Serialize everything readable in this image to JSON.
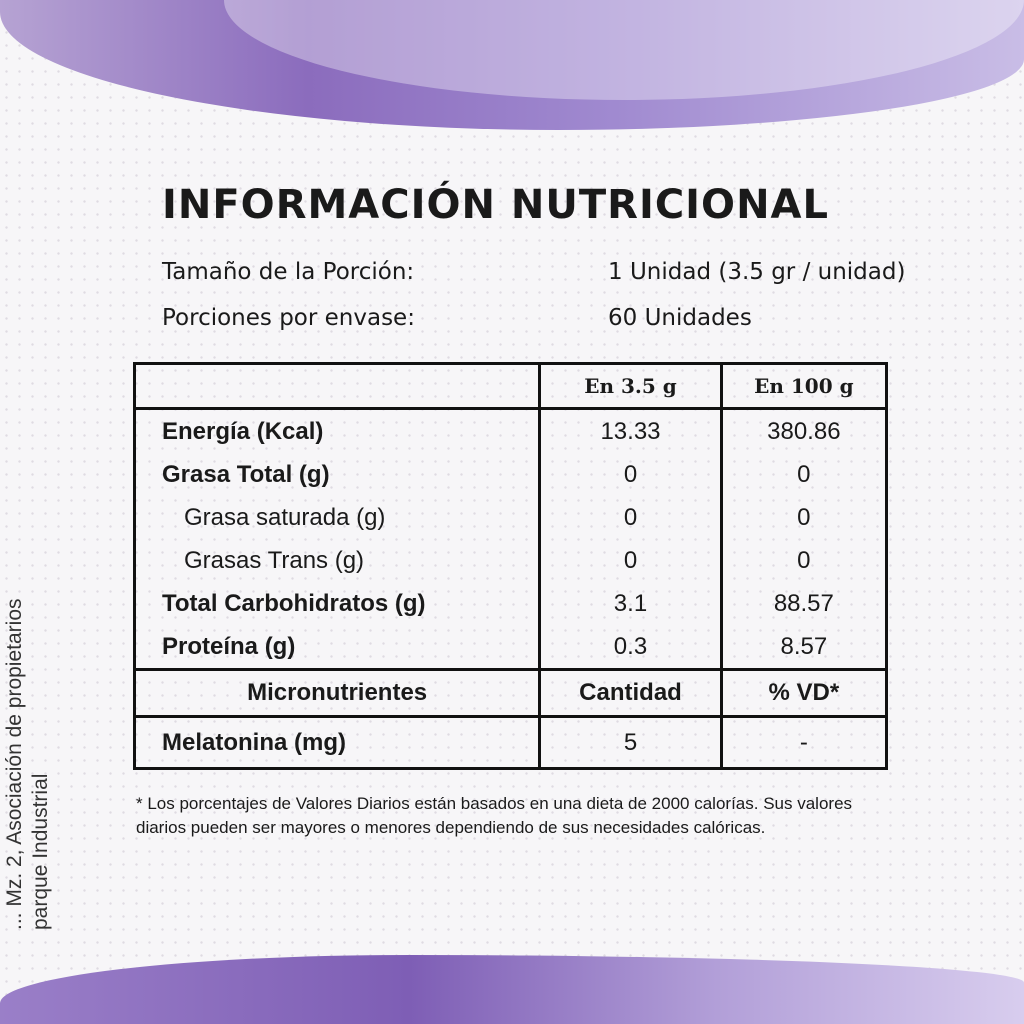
{
  "title": "INFORMACIÓN NUTRICIONAL",
  "serving": {
    "size_label": "Tamaño de la Porción:",
    "size_value": "1 Unidad (3.5 gr / unidad)",
    "per_container_label": "Porciones por envase:",
    "per_container_value": "60 Unidades"
  },
  "table": {
    "headers": [
      "",
      "En 3.5 g",
      "En 100 g"
    ],
    "rows": [
      {
        "name": "Energía (Kcal)",
        "v1": "13.33",
        "v2": "380.86"
      },
      {
        "name": "Grasa Total (g)",
        "v1": "0",
        "v2": "0"
      },
      {
        "name": "Grasa saturada (g)",
        "v1": "0",
        "v2": "0"
      },
      {
        "name": "Grasas Trans (g)",
        "v1": "0",
        "v2": "0"
      },
      {
        "name": "Total Carbohidratos (g)",
        "v1": "3.1",
        "v2": "88.57"
      },
      {
        "name": "Proteína (g)",
        "v1": "0.3",
        "v2": "8.57"
      }
    ],
    "micro_headers": [
      "Micronutrientes",
      "Cantidad",
      "% VD*"
    ],
    "micro_rows": [
      {
        "name": "Melatonina (mg)",
        "v1": "5",
        "v2": "-"
      }
    ]
  },
  "footnote": "* Los porcentajes de Valores Diarios están basados en una dieta de 2000 calorías. Sus valores diarios pueden ser mayores o menores dependiendo de sus necesidades calóricas.",
  "side_text": [
    "... Mz. 2, Asociación de propietarios",
    "parque Industrial"
  ],
  "colors": {
    "accent": "#8b6cbd"
  }
}
